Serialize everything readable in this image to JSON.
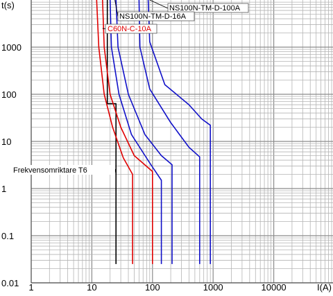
{
  "chart_data": {
    "type": "line",
    "title": "",
    "xlabel": "I(A)",
    "ylabel": "t(s)",
    "x_scale": "log",
    "y_scale": "log",
    "xlim": [
      1,
      100000
    ],
    "ylim": [
      0.01,
      10000
    ],
    "grid": true,
    "x_tick_labels": [
      "1",
      "10",
      "100",
      "1000",
      "10000"
    ],
    "y_tick_labels": [
      "1000",
      "100",
      "10",
      "1",
      "0.1",
      "0.01"
    ],
    "series": [
      {
        "name": "Frekvensomriktare T6",
        "color": "#000000",
        "points": [
          [
            18,
            10000
          ],
          [
            18,
            63
          ],
          [
            25,
            63
          ],
          [
            25,
            0.025
          ]
        ]
      },
      {
        "name": "C60N-C-10A",
        "color": "#e00000",
        "band": "lower",
        "points": [
          [
            12,
            10000
          ],
          [
            13,
            1000
          ],
          [
            16,
            100
          ],
          [
            22,
            20
          ],
          [
            33,
            4.5
          ],
          [
            47,
            2
          ],
          [
            47,
            0.025
          ]
        ]
      },
      {
        "name": "C60N-C-10A",
        "color": "#e00000",
        "band": "upper",
        "points": [
          [
            15,
            10000
          ],
          [
            16,
            1000
          ],
          [
            20,
            100
          ],
          [
            30,
            20
          ],
          [
            50,
            5
          ],
          [
            100,
            2.3
          ],
          [
            100,
            0.025
          ]
        ]
      },
      {
        "name": "NS100N-TM-D-16A",
        "color": "#1010c8",
        "band": "lower",
        "points": [
          [
            20,
            10000
          ],
          [
            21,
            1000
          ],
          [
            28,
            100
          ],
          [
            45,
            14
          ],
          [
            90,
            3.5
          ],
          [
            140,
            1.5
          ],
          [
            140,
            0.025
          ]
        ]
      },
      {
        "name": "NS100N-TM-D-16A",
        "color": "#1010c8",
        "band": "upper",
        "points": [
          [
            25,
            10000
          ],
          [
            27,
            1000
          ],
          [
            40,
            100
          ],
          [
            75,
            14
          ],
          [
            140,
            5
          ],
          [
            210,
            3.2
          ],
          [
            210,
            0.025
          ]
        ]
      },
      {
        "name": "NS100N-TM-D-100A",
        "color": "#1010c8",
        "band": "lower",
        "points": [
          [
            60,
            10000
          ],
          [
            62,
            1000
          ],
          [
            90,
            130
          ],
          [
            200,
            25
          ],
          [
            400,
            7.5
          ],
          [
            600,
            4.7
          ],
          [
            600,
            0.025
          ]
        ]
      },
      {
        "name": "NS100N-TM-D-100A",
        "color": "#1010c8",
        "band": "upper",
        "points": [
          [
            85,
            10000
          ],
          [
            90,
            1300
          ],
          [
            160,
            160
          ],
          [
            400,
            60
          ],
          [
            650,
            30
          ],
          [
            900,
            22
          ],
          [
            900,
            0.025
          ]
        ]
      }
    ],
    "annotations": [
      {
        "text": "NS100N-TM-D-100A",
        "color": "#000000",
        "points_to": [
          90,
          10000
        ]
      },
      {
        "text": "NS100N-TM-D-16A",
        "color": "#000000",
        "points_to": [
          24,
          10000
        ]
      },
      {
        "text": "C60N-C-10A",
        "color": "#e00000",
        "points_to": [
          15,
          2500
        ]
      },
      {
        "text": "Frekvensomriktare T6",
        "color": "#000000",
        "points_to": [
          25,
          2
        ]
      }
    ]
  }
}
